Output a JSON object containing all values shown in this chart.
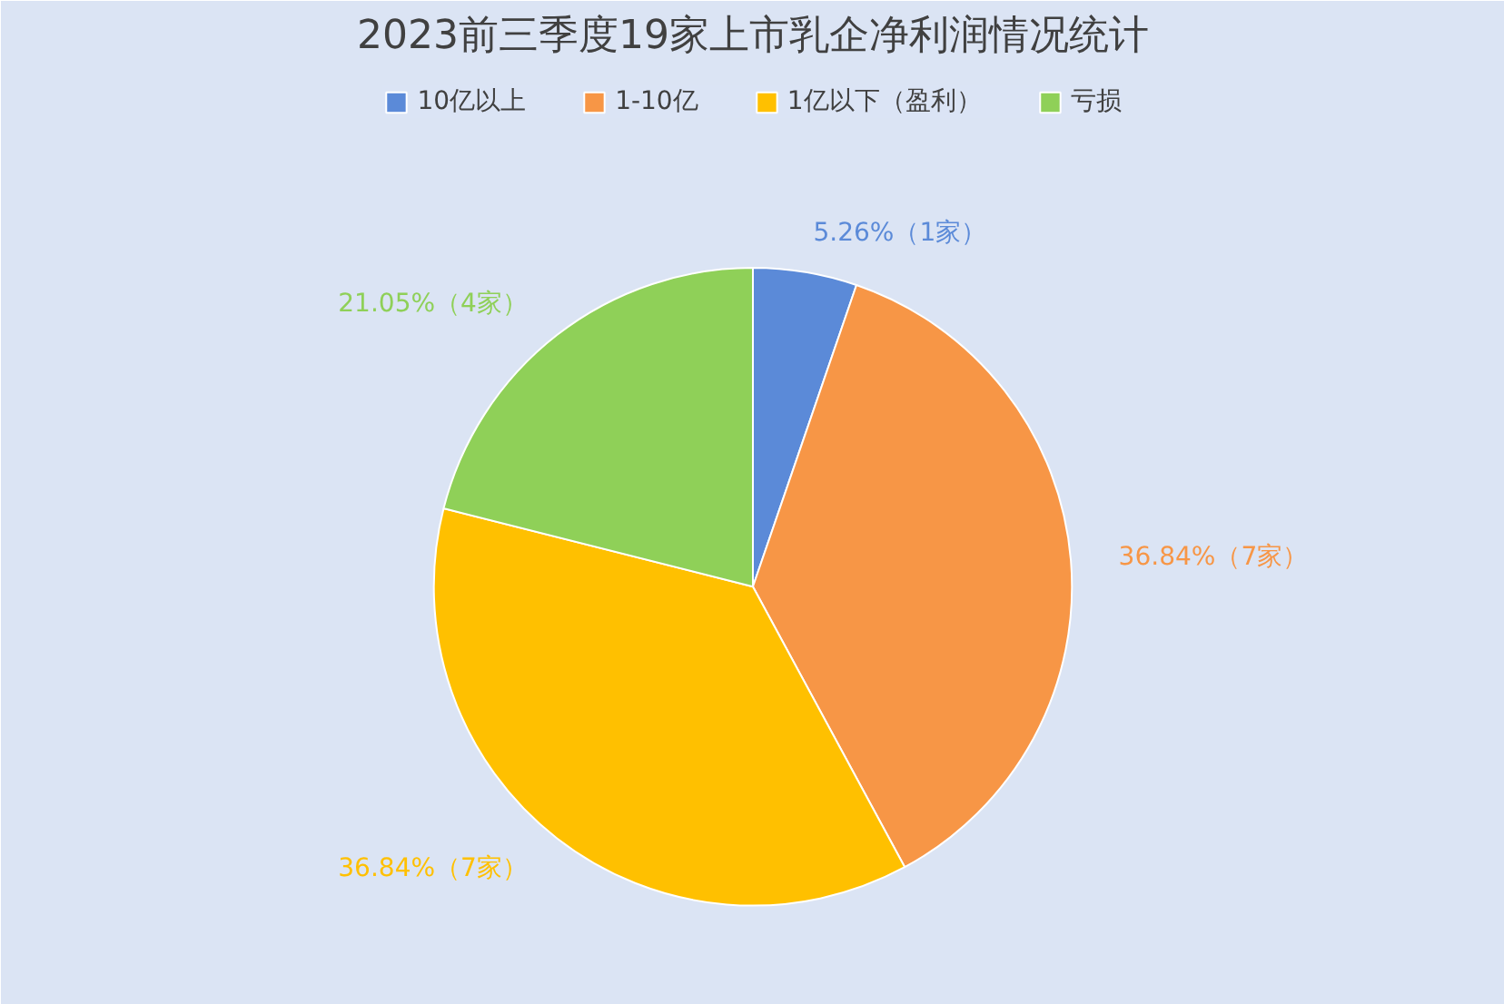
{
  "chart_data": {
    "type": "pie",
    "title": "2023前三季度19家上市乳企净利润情况统计",
    "categories": [
      "10亿以上",
      "1-10亿",
      "1亿以下（盈利）",
      "亏损"
    ],
    "values": [
      5.26,
      36.84,
      36.84,
      21.05
    ],
    "colors": [
      "#5b8ad8",
      "#f79646",
      "#ffc000",
      "#8fd058"
    ],
    "value_labels": [
      "5.26%（1家）",
      "36.84%（7家）",
      "36.84%（7家）",
      "21.05%（4家）"
    ],
    "legend": "top"
  }
}
